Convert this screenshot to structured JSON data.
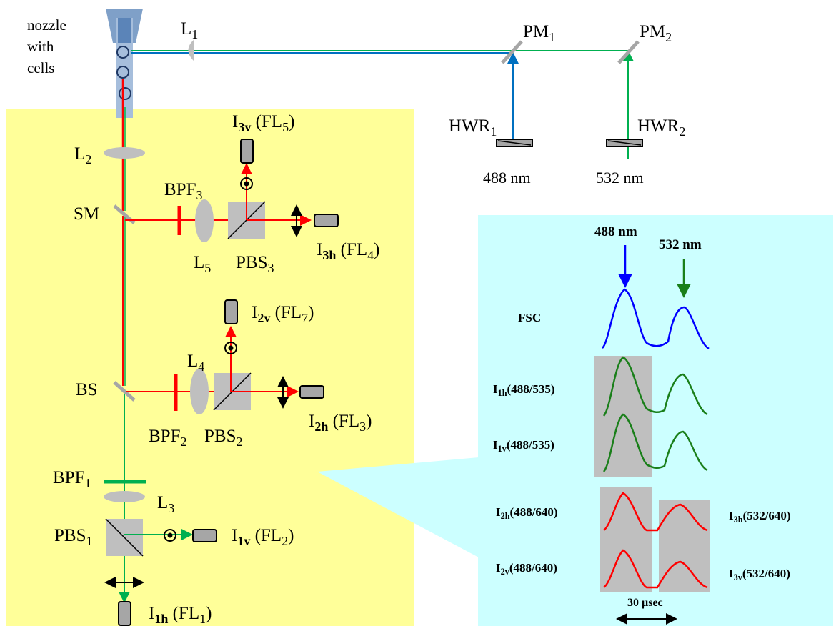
{
  "source_labels": {
    "nozzle": [
      "nozzle",
      "with",
      "cells"
    ],
    "L1": {
      "main": "L",
      "sub": "1"
    },
    "PM1": {
      "main": "PM",
      "sub": "1"
    },
    "PM2": {
      "main": "PM",
      "sub": "2"
    },
    "HWR1": {
      "main": "HWR",
      "sub": "1"
    },
    "HWR2": {
      "main": "HWR",
      "sub": "2"
    },
    "laser_488": "488 nm",
    "laser_532": "532 nm"
  },
  "optics_labels": {
    "L2": {
      "main": "L",
      "sub": "2"
    },
    "L3": {
      "main": "L",
      "sub": "3"
    },
    "L4": {
      "main": "L",
      "sub": "4"
    },
    "L5": {
      "main": "L",
      "sub": "5"
    },
    "SM": "SM",
    "BS": "BS",
    "BPF1": {
      "main": "BPF",
      "sub": "1"
    },
    "BPF2": {
      "main": "BPF",
      "sub": "2"
    },
    "BPF3": {
      "main": "BPF",
      "sub": "3"
    },
    "PBS1": {
      "main": "PBS",
      "sub": "1"
    },
    "PBS2": {
      "main": "PBS",
      "sub": "2"
    },
    "PBS3": {
      "main": "PBS",
      "sub": "3"
    }
  },
  "detector_labels": {
    "I3v": {
      "main": "I",
      "sub": "3v",
      "paren": "(FL",
      "psub": "5",
      "close": ")"
    },
    "I3h": {
      "main": "I",
      "sub": "3h",
      "paren": "(FL",
      "psub": "4",
      "close": ")"
    },
    "I2v": {
      "main": "I",
      "sub": "2v",
      "paren": "(FL",
      "psub": "7",
      "close": ")"
    },
    "I2h": {
      "main": "I",
      "sub": "2h",
      "paren": "(FL",
      "psub": "3",
      "close": ")"
    },
    "I1v": {
      "main": "I",
      "sub": "1v",
      "paren": "(FL",
      "psub": "2",
      "close": ")"
    },
    "I1h": {
      "main": "I",
      "sub": "1h",
      "paren": "(FL",
      "psub": "1",
      "close": ")"
    }
  },
  "signals": {
    "peak_488": "488 nm",
    "peak_532": "532 nm",
    "fsc": "FSC",
    "i1h": {
      "main": "I",
      "sub": "1h",
      "rest": "(488/535)"
    },
    "i1v": {
      "main": "I",
      "sub": "1v",
      "rest": "(488/535)"
    },
    "i2h": {
      "main": "I",
      "sub": "2h",
      "rest": "(488/640)"
    },
    "i2v": {
      "main": "I",
      "sub": "2v",
      "rest": "(488/640)"
    },
    "i3h": {
      "main": "I",
      "sub": "3h",
      "rest": "(532/640)"
    },
    "i3v": {
      "main": "I",
      "sub": "3v",
      "rest": "(532/640)"
    },
    "timescale": "30 µsec"
  },
  "colors": {
    "yellow_panel": "#ffff99",
    "cyan_panel": "#ccffff",
    "blue_beam": "#0070c0",
    "green_beam": "#00b050",
    "red_beam": "#ff0000",
    "fsc_trace": "#0000ff",
    "green_trace": "#1a7f1a",
    "red_trace": "#ff0000",
    "gray_optic": "#bfbfbf",
    "detector": "#a6a6a6"
  }
}
